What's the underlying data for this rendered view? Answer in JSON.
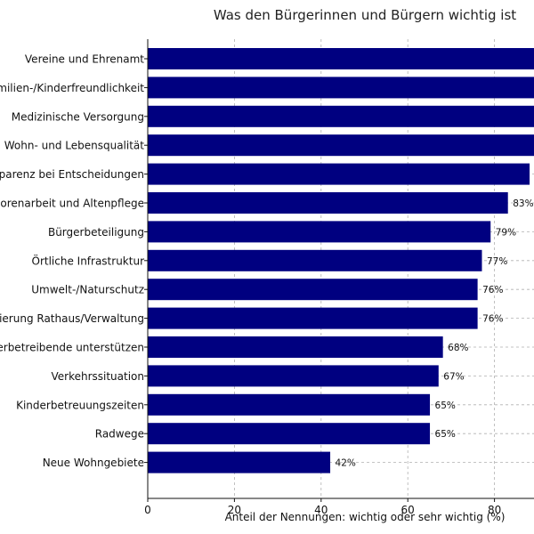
{
  "chart_data": {
    "type": "bar",
    "orientation": "horizontal",
    "title": "Was den Bürgerinnen und Bürgern wichtig ist",
    "xlabel": "Anteil der Nennungen: wichtig oder sehr wichtig (%)",
    "ylabel": "",
    "xlim": [
      0,
      100
    ],
    "xticks": [
      0,
      20,
      40,
      60,
      80
    ],
    "grid": true,
    "bar_color": "#000080",
    "categories": [
      "Vereine und Ehrenamt",
      "Familien-/Kinderfreundlichkeit",
      "Medizinische Versorgung",
      "Wohn- und Lebensqualität",
      "Transparenz bei Entscheidungen",
      "Seniorenarbeit und Altenpflege",
      "Bürgerbeteiligung",
      "Örtliche Infrastruktur",
      "Umwelt-/Naturschutz",
      "Modernisierung Rathaus/Verwaltung",
      "Gewerbetreibende unterstützen",
      "Verkehrssituation",
      "Kinderbetreuungszeiten",
      "Radwege",
      "Neue Wohngebiete"
    ],
    "values": [
      93,
      92,
      91,
      90,
      88,
      83,
      79,
      77,
      76,
      76,
      68,
      67,
      65,
      65,
      42
    ],
    "value_labels": [
      "",
      "",
      "",
      "",
      "",
      "83%",
      "79%",
      "77%",
      "76%",
      "76%",
      "68%",
      "67%",
      "65%",
      "65%",
      "42%"
    ]
  }
}
